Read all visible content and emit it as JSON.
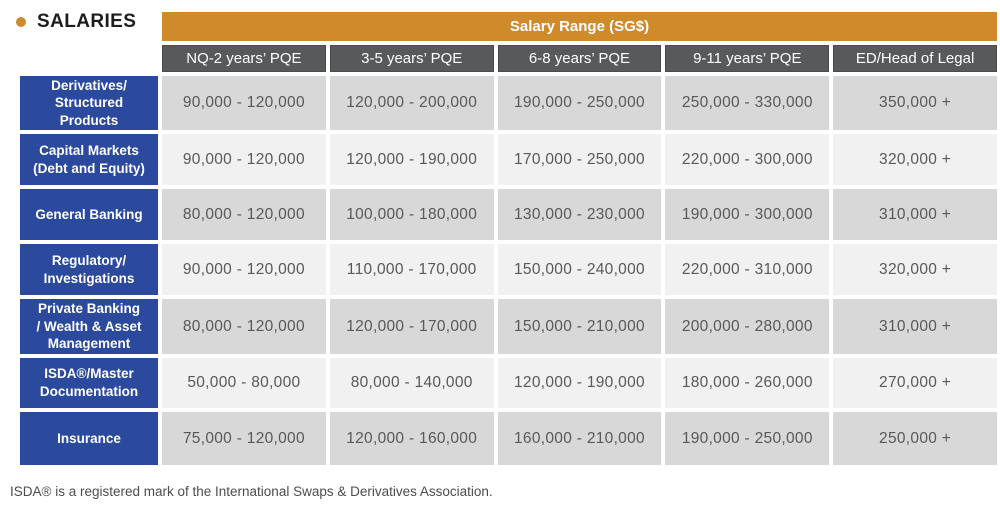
{
  "page": {
    "title": "SALARIES",
    "footnote": "ISDA® is a registered mark of the International Swaps & Derivatives Association."
  },
  "colors": {
    "orange": "#cf8a2b",
    "header-gray": "#58595b",
    "blue": "#2b4a9d",
    "row-dark": "#d8d8d9",
    "row-light": "#f1f1f2",
    "cell-text": "#57585a",
    "title-text": "#1d1d1b",
    "footnote-text": "#4c4c4c"
  },
  "table": {
    "spanning_header": "Salary Range (SG$)",
    "column_headers": [
      "NQ-2 years’ PQE",
      "3-5 years’ PQE",
      "6-8 years’ PQE",
      "9-11 years’ PQE",
      "ED/Head of Legal"
    ],
    "rows": [
      {
        "label": "Derivatives/\nStructured Products",
        "values": [
          "90,000 - 120,000",
          "120,000 - 200,000",
          "190,000 - 250,000",
          "250,000 - 330,000",
          "350,000 +"
        ]
      },
      {
        "label": "Capital Markets\n(Debt and Equity)",
        "values": [
          "90,000 - 120,000",
          "120,000 - 190,000",
          "170,000 - 250,000",
          "220,000 - 300,000",
          "320,000 +"
        ]
      },
      {
        "label": "General Banking",
        "values": [
          "80,000 - 120,000",
          "100,000 - 180,000",
          "130,000 - 230,000",
          "190,000 - 300,000",
          "310,000 +"
        ]
      },
      {
        "label": "Regulatory/\nInvestigations",
        "values": [
          "90,000 - 120,000",
          "110,000 - 170,000",
          "150,000 - 240,000",
          "220,000 - 310,000",
          "320,000 +"
        ]
      },
      {
        "label": "Private Banking\n/ Wealth & Asset\nManagement",
        "values": [
          "80,000 - 120,000",
          "120,000 - 170,000",
          "150,000 - 210,000",
          "200,000 - 280,000",
          "310,000 +"
        ]
      },
      {
        "label": "ISDA®/Master\nDocumentation",
        "values": [
          "50,000 - 80,000",
          "80,000 - 140,000",
          "120,000 - 190,000",
          "180,000 - 260,000",
          "270,000 +"
        ]
      },
      {
        "label": "Insurance",
        "values": [
          "75,000 - 120,000",
          "120,000 - 160,000",
          "160,000 - 210,000",
          "190,000 - 250,000",
          "250,000 +"
        ]
      }
    ]
  }
}
